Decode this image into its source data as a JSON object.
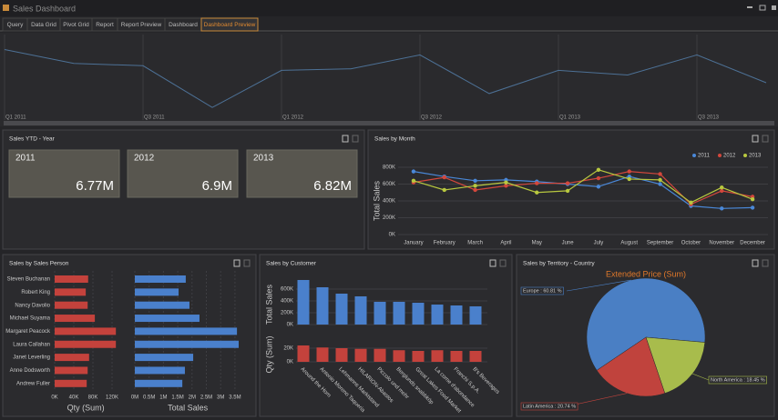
{
  "header": {
    "title": "Sales Dashboard"
  },
  "tabs": [
    "Query",
    "Data Grid",
    "Pivot Grid",
    "Report",
    "Report Preview",
    "Dashboard",
    "Dashboard Preview"
  ],
  "active_tab": 6,
  "panels": [
    "Sales YTD - Year",
    "Sales by Month",
    "Sales by Sales Person",
    "Sales by Customer",
    "Sales by Territory - Country"
  ],
  "cards": [
    {
      "label": "2011",
      "value": "6.77M"
    },
    {
      "label": "2012",
      "value": "6.9M"
    },
    {
      "label": "2013",
      "value": "6.82M"
    }
  ],
  "chart_data": [
    {
      "type": "line",
      "categories": [
        "Q1 2011",
        null,
        "Q3 2011",
        null,
        "Q1 2012",
        null,
        "Q3 2012",
        null,
        "Q1 2013",
        null,
        "Q3 2013",
        null
      ],
      "values": [
        83,
        65,
        62,
        8,
        56,
        58,
        76,
        26,
        56,
        50,
        76,
        40
      ],
      "ylim": [
        0,
        100
      ],
      "color": "#4d7196"
    },
    {
      "type": "line",
      "ylabel": "Total Sales",
      "categories": [
        "January",
        "February",
        "March",
        "April",
        "May",
        "June",
        "July",
        "August",
        "September",
        "October",
        "November",
        "December"
      ],
      "series": [
        {
          "name": "2011",
          "color": "#4a88d8",
          "values": [
            750000,
            690000,
            640000,
            650000,
            630000,
            600000,
            570000,
            690000,
            600000,
            340000,
            310000,
            320000
          ]
        },
        {
          "name": "2012",
          "color": "#d3473c",
          "values": [
            620000,
            680000,
            530000,
            580000,
            610000,
            610000,
            670000,
            750000,
            720000,
            360000,
            520000,
            450000
          ]
        },
        {
          "name": "2013",
          "color": "#b8c83f",
          "values": [
            640000,
            530000,
            580000,
            620000,
            500000,
            520000,
            770000,
            660000,
            650000,
            380000,
            560000,
            420000
          ]
        }
      ],
      "ylim": [
        0,
        800000
      ],
      "yticks": [
        {
          "value": 0,
          "label": "0K"
        },
        {
          "value": 200000,
          "label": "200K"
        },
        {
          "value": 400000,
          "label": "400K"
        },
        {
          "value": 600000,
          "label": "600K"
        },
        {
          "value": 800000,
          "label": "800K"
        }
      ],
      "grid": true,
      "legend": "top-right"
    },
    {
      "type": "bar",
      "orientation": "horizontal",
      "xlabel": "Qty (Sum)",
      "color": "#c4423c",
      "categories": [
        "Steven Buchanan",
        "Robert King",
        "Nancy Davolio",
        "Michael Suyama",
        "Margaret Peacock",
        "Laura Callahan",
        "Janet Leverling",
        "Anne Dodsworth",
        "Andrew Fuller"
      ],
      "values": [
        70000,
        65000,
        69000,
        84000,
        128000,
        128000,
        72000,
        69000,
        67000
      ],
      "xlim": [
        0,
        130000
      ],
      "xticks": [
        {
          "value": 0,
          "label": "0K"
        },
        {
          "value": 40000,
          "label": "40K"
        },
        {
          "value": 80000,
          "label": "80K"
        },
        {
          "value": 120000,
          "label": "120K"
        }
      ],
      "grid": true
    },
    {
      "type": "bar",
      "orientation": "horizontal",
      "xlabel": "Total Sales",
      "color": "#4a80cc",
      "values": [
        1780000,
        1530000,
        1910000,
        2260000,
        3570000,
        3630000,
        2040000,
        1750000,
        1660000
      ],
      "xlim": [
        0,
        3700000
      ],
      "xticks": [
        {
          "value": 0,
          "label": "0M"
        },
        {
          "value": 500000,
          "label": "0.5M"
        },
        {
          "value": 1000000,
          "label": "1M"
        },
        {
          "value": 1500000,
          "label": "1.5M"
        },
        {
          "value": 2000000,
          "label": "2M"
        },
        {
          "value": 2500000,
          "label": "2.5M"
        },
        {
          "value": 3000000,
          "label": "3M"
        },
        {
          "value": 3500000,
          "label": "3.5M"
        }
      ],
      "grid": true
    },
    {
      "type": "bar",
      "ylabel": "Total Sales",
      "color": "#4a80cc",
      "values": [
        754000,
        631000,
        523000,
        477000,
        385000,
        385000,
        369000,
        338000,
        323000,
        308000
      ],
      "ylim": [
        0,
        800000
      ],
      "yticks": [
        {
          "value": 0,
          "label": "0K"
        },
        {
          "value": 200000,
          "label": "200K"
        },
        {
          "value": 400000,
          "label": "400K"
        },
        {
          "value": 600000,
          "label": "600K"
        }
      ],
      "grid": true
    },
    {
      "type": "bar",
      "ylabel": "Qty (Sum)",
      "color": "#c4423c",
      "categories": [
        "Around the Horn",
        "Antonio Moreno Taqueria",
        "Lehmanns Marktstand",
        "HILARION-Abastos",
        "Piccolo und mehr",
        "Berglunds snabbköp",
        "Great Lakes Food Market",
        "La corne d'abondance",
        "Franchi S.p.A.",
        "B's Beverages"
      ],
      "values": [
        24000,
        21000,
        20000,
        19000,
        19000,
        17000,
        16000,
        17000,
        16000,
        16000
      ],
      "ylim": [
        0,
        30000
      ],
      "yticks": [
        {
          "value": 0,
          "label": "0K"
        },
        {
          "value": 20000,
          "label": "20K"
        }
      ],
      "grid": true
    },
    {
      "type": "pie",
      "title": "Extended Price (Sum)",
      "values": [
        60.81,
        18.45,
        20.74
      ],
      "value_labels": [
        "Europe : 60.81 %",
        "North America : 18.45 %",
        "Latin America : 20.74 %"
      ],
      "colors": [
        "#4a7fc4",
        "#a8bc4c",
        "#c0433d"
      ]
    }
  ]
}
